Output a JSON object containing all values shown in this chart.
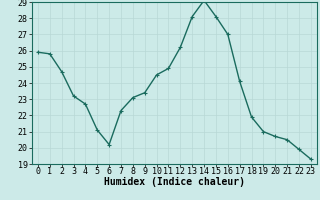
{
  "x": [
    0,
    1,
    2,
    3,
    4,
    5,
    6,
    7,
    8,
    9,
    10,
    11,
    12,
    13,
    14,
    15,
    16,
    17,
    18,
    19,
    20,
    21,
    22,
    23
  ],
  "y": [
    25.9,
    25.8,
    24.7,
    23.2,
    22.7,
    21.1,
    20.2,
    22.3,
    23.1,
    23.4,
    24.5,
    24.9,
    26.2,
    28.1,
    29.1,
    28.1,
    27.0,
    24.1,
    21.9,
    21.0,
    20.7,
    20.5,
    19.9,
    19.3
  ],
  "line_color": "#1a6b5e",
  "marker": "+",
  "marker_size": 3.5,
  "bg_color": "#cceae8",
  "grid_color": "#b8d8d6",
  "xlabel": "Humidex (Indice chaleur)",
  "xlim": [
    -0.5,
    23.5
  ],
  "ylim": [
    19,
    29
  ],
  "yticks": [
    19,
    20,
    21,
    22,
    23,
    24,
    25,
    26,
    27,
    28,
    29
  ],
  "xticks": [
    0,
    1,
    2,
    3,
    4,
    5,
    6,
    7,
    8,
    9,
    10,
    11,
    12,
    13,
    14,
    15,
    16,
    17,
    18,
    19,
    20,
    21,
    22,
    23
  ],
  "xlabel_fontsize": 7,
  "tick_fontsize": 6,
  "line_width": 1.0
}
